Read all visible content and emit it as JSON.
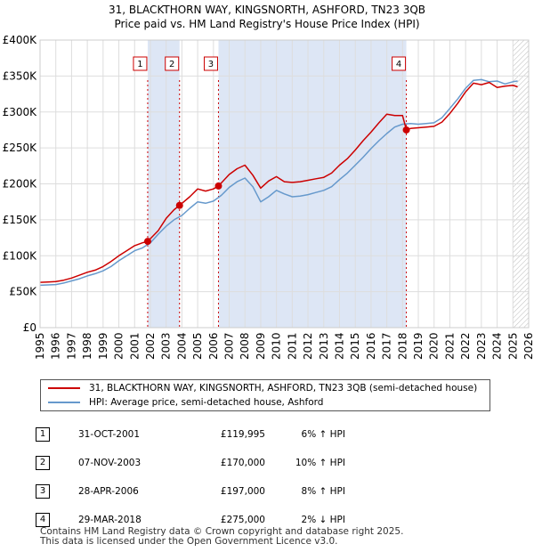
{
  "title_line1": "31, BLACKTHORN WAY, KINGSNORTH, ASHFORD, TN23 3QB",
  "title_line2": "Price paid vs. HM Land Registry's House Price Index (HPI)",
  "colors": {
    "price": "#cc0000",
    "hpi": "#6699cc",
    "shade": "#dde6f5",
    "grid": "#dddddd",
    "vline": "#cc0000"
  },
  "chart_data": {
    "type": "line",
    "title": "31, BLACKTHORN WAY, KINGSNORTH, ASHFORD, TN23 3QB — Price paid vs. HM Land Registry's House Price Index (HPI)",
    "xlim": [
      1995,
      2026
    ],
    "ylim": [
      0,
      400000
    ],
    "y_ticks": [
      0,
      50000,
      100000,
      150000,
      200000,
      250000,
      300000,
      350000,
      400000
    ],
    "y_tick_labels": [
      "£0",
      "£50K",
      "£100K",
      "£150K",
      "£200K",
      "£250K",
      "£300K",
      "£350K",
      "£400K"
    ],
    "x_ticks": [
      "1995",
      "1996",
      "1997",
      "1998",
      "1999",
      "2000",
      "2001",
      "2002",
      "2003",
      "2004",
      "2005",
      "2006",
      "2007",
      "2008",
      "2009",
      "2010",
      "2011",
      "2012",
      "2013",
      "2014",
      "2015",
      "2016",
      "2017",
      "2018",
      "2019",
      "2020",
      "2021",
      "2022",
      "2023",
      "2024",
      "2025",
      "2026"
    ],
    "shaded_periods": [
      [
        2001.83,
        2003.85
      ],
      [
        2006.32,
        2018.24
      ]
    ],
    "hatched_after": 2025.0,
    "series": [
      {
        "name": "31, BLACKTHORN WAY, KINGSNORTH, ASHFORD, TN23 3QB (semi-detached house)",
        "x": [
          1995,
          1995.5,
          1996,
          1996.5,
          1997,
          1997.5,
          1998,
          1998.5,
          1999,
          1999.5,
          2000,
          2000.5,
          2001,
          2001.5,
          2001.83,
          2002.5,
          2003,
          2003.5,
          2003.85,
          2004.5,
          2005,
          2005.5,
          2006,
          2006.32,
          2007,
          2007.5,
          2008,
          2008.5,
          2009,
          2009.5,
          2010,
          2010.5,
          2011,
          2011.5,
          2012,
          2012.5,
          2013,
          2013.5,
          2014,
          2014.5,
          2015,
          2015.5,
          2016,
          2016.5,
          2017,
          2017.5,
          2018,
          2018.24,
          2018.5,
          2019,
          2019.5,
          2020,
          2020.5,
          2021,
          2021.5,
          2022,
          2022.5,
          2023,
          2023.5,
          2024,
          2024.5,
          2025,
          2025.3
        ],
        "values": [
          63000,
          63500,
          64000,
          66000,
          69000,
          73000,
          77000,
          80000,
          85000,
          92000,
          100000,
          107000,
          114000,
          118000,
          119995,
          135000,
          152000,
          164000,
          170000,
          182000,
          193000,
          190000,
          193000,
          197000,
          213000,
          221000,
          226000,
          212000,
          194000,
          204000,
          210000,
          203000,
          202000,
          203000,
          205000,
          207000,
          209000,
          215000,
          226000,
          235000,
          247000,
          260000,
          272000,
          285000,
          297000,
          295000,
          295000,
          275000,
          277000,
          278000,
          279000,
          280000,
          286000,
          298000,
          312000,
          328000,
          340000,
          338000,
          341000,
          334000,
          336000,
          337000,
          335000
        ]
      },
      {
        "name": "HPI: Average price, semi-detached house, Ashford",
        "x": [
          1995,
          1995.5,
          1996,
          1996.5,
          1997,
          1997.5,
          1998,
          1998.5,
          1999,
          1999.5,
          2000,
          2000.5,
          2001,
          2001.5,
          2002,
          2002.5,
          2003,
          2003.5,
          2004,
          2004.5,
          2005,
          2005.5,
          2006,
          2006.5,
          2007,
          2007.5,
          2008,
          2008.5,
          2009,
          2009.5,
          2010,
          2010.5,
          2011,
          2011.5,
          2012,
          2012.5,
          2013,
          2013.5,
          2014,
          2014.5,
          2015,
          2015.5,
          2016,
          2016.5,
          2017,
          2017.5,
          2018,
          2018.5,
          2019,
          2019.5,
          2020,
          2020.5,
          2021,
          2021.5,
          2022,
          2022.5,
          2023,
          2023.5,
          2024,
          2024.5,
          2025,
          2025.3
        ],
        "values": [
          59000,
          59500,
          60000,
          62000,
          65000,
          68000,
          72000,
          75000,
          79000,
          85000,
          93000,
          100000,
          107000,
          111000,
          118000,
          130000,
          141000,
          150000,
          156000,
          166000,
          175000,
          173000,
          176000,
          184000,
          195000,
          203000,
          208000,
          196000,
          175000,
          182000,
          191000,
          186000,
          182000,
          183000,
          185000,
          188000,
          191000,
          196000,
          206000,
          215000,
          226000,
          237000,
          249000,
          260000,
          270000,
          279000,
          283000,
          284000,
          283000,
          284000,
          285000,
          292000,
          305000,
          318000,
          333000,
          344000,
          345000,
          342000,
          343000,
          339000,
          342000,
          343000
        ]
      }
    ],
    "annotations": [
      {
        "label": "1",
        "x": 2001.83,
        "y": 119995
      },
      {
        "label": "2",
        "x": 2003.85,
        "y": 170000
      },
      {
        "label": "3",
        "x": 2006.32,
        "y": 197000
      },
      {
        "label": "4",
        "x": 2018.24,
        "y": 275000
      }
    ]
  },
  "legend": {
    "items": [
      {
        "label": "31, BLACKTHORN WAY, KINGSNORTH, ASHFORD, TN23 3QB (semi-detached house)"
      },
      {
        "label": "HPI: Average price, semi-detached house, Ashford"
      }
    ]
  },
  "transactions": [
    {
      "num": "1",
      "date": "31-OCT-2001",
      "price": "£119,995",
      "hpi": "6% ↑ HPI"
    },
    {
      "num": "2",
      "date": "07-NOV-2003",
      "price": "£170,000",
      "hpi": "10% ↑ HPI"
    },
    {
      "num": "3",
      "date": "28-APR-2006",
      "price": "£197,000",
      "hpi": "8% ↑ HPI"
    },
    {
      "num": "4",
      "date": "29-MAR-2018",
      "price": "£275,000",
      "hpi": "2% ↓ HPI"
    }
  ],
  "footer": {
    "line1": "Contains HM Land Registry data © Crown copyright and database right 2025.",
    "line2": "This data is licensed under the Open Government Licence v3.0."
  }
}
